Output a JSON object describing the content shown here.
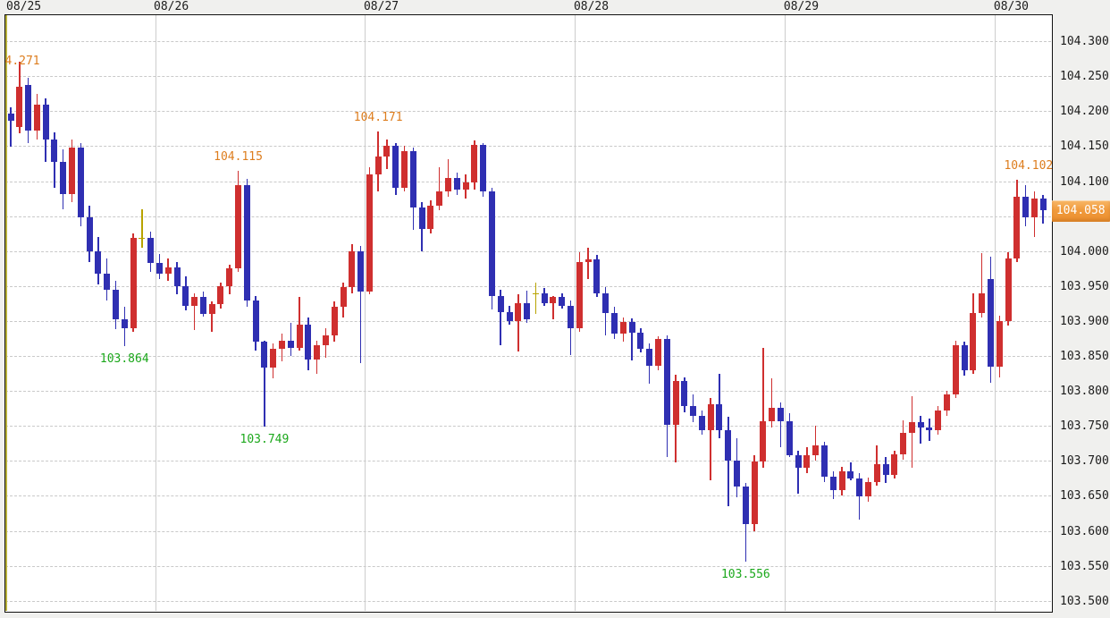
{
  "window": {
    "description": "forex candlestick chart panel, hourly candles"
  },
  "colors": {
    "up_candle": "#cf2f2f",
    "down_candle": "#2f2fb2",
    "doji_candle": "#b8a300",
    "grid": "#c9c9c9",
    "plot_border": "#111111",
    "plot_bg": "#ffffff",
    "frame_bg": "#f0f0ee",
    "axis_text": "#1b1b1b",
    "high_label": "#dd7d1e",
    "low_label": "#1ca81c",
    "price_badge_bg": "#f09a3c",
    "price_badge_bg_light": "#f8b869",
    "price_badge_text": "#ffffff",
    "session_line": "#b9b23a"
  },
  "current_price": {
    "label": "104.058",
    "value": 104.058
  },
  "x_axis": {
    "day_labels": [
      {
        "label": "08/25",
        "start_index": 0
      },
      {
        "label": "08/26",
        "start_index": 17
      },
      {
        "label": "08/27",
        "start_index": 41
      },
      {
        "label": "08/28",
        "start_index": 65
      },
      {
        "label": "08/29",
        "start_index": 89
      },
      {
        "label": "08/30",
        "start_index": 113
      }
    ]
  },
  "y_axis": {
    "tick_labels": [
      "104.300",
      "104.250",
      "104.200",
      "104.150",
      "104.100",
      "104.000",
      "103.950",
      "103.900",
      "103.850",
      "103.800",
      "103.750",
      "103.700",
      "103.650",
      "103.600",
      "103.550",
      "103.500"
    ],
    "grid_max": 104.3,
    "grid_min": 103.5,
    "grid_step": 0.05
  },
  "annotations": [
    {
      "text": "4.271",
      "value": 104.271,
      "candle_index": 1,
      "kind": "high-clipped",
      "color": "orange"
    },
    {
      "text": "104.115",
      "value": 104.115,
      "candle_index": 26,
      "kind": "high",
      "color": "orange",
      "dx": 0
    },
    {
      "text": "104.171",
      "value": 104.171,
      "candle_index": 42,
      "kind": "high",
      "color": "orange",
      "dx": 0
    },
    {
      "text": "104.102",
      "value": 104.102,
      "candle_index": 115,
      "kind": "high",
      "color": "orange",
      "dx": 13
    },
    {
      "text": "103.864",
      "value": 103.864,
      "candle_index": 13,
      "kind": "low",
      "color": "green"
    },
    {
      "text": "103.749",
      "value": 103.749,
      "candle_index": 29,
      "kind": "low",
      "color": "green"
    },
    {
      "text": "103.556",
      "value": 103.556,
      "candle_index": 84,
      "kind": "low",
      "color": "green"
    }
  ],
  "chart_data": {
    "type": "candlestick",
    "timeframe_note": "hourly candles, red = up, blue = down, yellow = doji",
    "ylim": [
      103.486,
      104.337
    ],
    "grid": "dashed horizontal every 0.050, solid vertical at each day start",
    "legend_position": "none",
    "days": [
      "08/25",
      "08/26",
      "08/27",
      "08/28",
      "08/29",
      "08/30"
    ],
    "day_start_indices": [
      0,
      17,
      41,
      65,
      89,
      113
    ],
    "candles_ohlc": [
      [
        104.197,
        104.205,
        104.149,
        104.187
      ],
      [
        104.178,
        104.271,
        104.168,
        104.235
      ],
      [
        104.238,
        104.248,
        104.154,
        104.172
      ],
      [
        104.172,
        104.225,
        104.16,
        104.21
      ],
      [
        104.21,
        104.218,
        104.128,
        104.16
      ],
      [
        104.16,
        104.17,
        104.09,
        104.128
      ],
      [
        104.128,
        104.145,
        104.06,
        104.082
      ],
      [
        104.082,
        104.16,
        104.07,
        104.148
      ],
      [
        104.148,
        104.155,
        104.035,
        104.048
      ],
      [
        104.048,
        104.065,
        103.985,
        104.0
      ],
      [
        104.0,
        104.02,
        103.952,
        103.968
      ],
      [
        103.968,
        103.99,
        103.93,
        103.945
      ],
      [
        103.945,
        103.958,
        103.888,
        103.902
      ],
      [
        103.902,
        103.92,
        103.864,
        103.89
      ],
      [
        103.89,
        104.025,
        103.885,
        104.019
      ],
      [
        104.019,
        104.06,
        104.005,
        104.019
      ],
      [
        104.019,
        104.028,
        103.97,
        103.983
      ],
      [
        103.983,
        103.996,
        103.96,
        103.968
      ],
      [
        103.968,
        103.99,
        103.958,
        103.977
      ],
      [
        103.977,
        103.985,
        103.938,
        103.95
      ],
      [
        103.95,
        103.964,
        103.915,
        103.922
      ],
      [
        103.922,
        103.94,
        103.887,
        103.935
      ],
      [
        103.935,
        103.942,
        103.906,
        103.91
      ],
      [
        103.91,
        103.928,
        103.885,
        103.924
      ],
      [
        103.924,
        103.955,
        103.918,
        103.95
      ],
      [
        103.95,
        103.98,
        103.938,
        103.976
      ],
      [
        103.976,
        104.115,
        103.97,
        104.095
      ],
      [
        104.095,
        104.103,
        103.92,
        103.93
      ],
      [
        103.93,
        103.936,
        103.858,
        103.87
      ],
      [
        103.87,
        103.872,
        103.749,
        103.833
      ],
      [
        103.833,
        103.868,
        103.818,
        103.86
      ],
      [
        103.86,
        103.882,
        103.842,
        103.872
      ],
      [
        103.872,
        103.898,
        103.85,
        103.862
      ],
      [
        103.862,
        103.935,
        103.858,
        103.895
      ],
      [
        103.895,
        103.905,
        103.83,
        103.845
      ],
      [
        103.845,
        103.872,
        103.825,
        103.865
      ],
      [
        103.865,
        103.89,
        103.848,
        103.88
      ],
      [
        103.88,
        103.928,
        103.87,
        103.92
      ],
      [
        103.92,
        103.955,
        103.905,
        103.948
      ],
      [
        103.948,
        104.01,
        103.94,
        104.0
      ],
      [
        104.0,
        104.008,
        103.84,
        103.942
      ],
      [
        103.942,
        104.12,
        103.938,
        104.11
      ],
      [
        104.11,
        104.171,
        104.085,
        104.135
      ],
      [
        104.135,
        104.16,
        104.118,
        104.15
      ],
      [
        104.15,
        104.155,
        104.08,
        104.09
      ],
      [
        104.09,
        104.15,
        104.085,
        104.143
      ],
      [
        104.143,
        104.148,
        104.03,
        104.062
      ],
      [
        104.062,
        104.07,
        104.0,
        104.032
      ],
      [
        104.032,
        104.072,
        104.025,
        104.065
      ],
      [
        104.065,
        104.12,
        104.058,
        104.085
      ],
      [
        104.085,
        104.132,
        104.078,
        104.105
      ],
      [
        104.105,
        104.112,
        104.08,
        104.088
      ],
      [
        104.088,
        104.11,
        104.075,
        104.098
      ],
      [
        104.098,
        104.158,
        104.088,
        104.152
      ],
      [
        104.152,
        104.155,
        104.078,
        104.085
      ],
      [
        104.085,
        104.09,
        103.916,
        103.936
      ],
      [
        103.936,
        103.945,
        103.866,
        103.913
      ],
      [
        103.913,
        103.922,
        103.895,
        103.9
      ],
      [
        103.9,
        103.938,
        103.857,
        103.925
      ],
      [
        103.925,
        103.944,
        103.898,
        103.903
      ],
      [
        103.94,
        103.955,
        103.91,
        103.94
      ],
      [
        103.94,
        103.947,
        103.922,
        103.925
      ],
      [
        103.925,
        103.936,
        103.902,
        103.934
      ],
      [
        103.934,
        103.94,
        103.918,
        103.922
      ],
      [
        103.922,
        103.93,
        103.852,
        103.89
      ],
      [
        103.89,
        103.998,
        103.885,
        103.984
      ],
      [
        103.984,
        104.005,
        103.96,
        103.988
      ],
      [
        103.988,
        103.995,
        103.935,
        103.94
      ],
      [
        103.94,
        103.948,
        103.88,
        103.912
      ],
      [
        103.912,
        103.92,
        103.875,
        103.882
      ],
      [
        103.882,
        103.905,
        103.87,
        103.899
      ],
      [
        103.899,
        103.904,
        103.844,
        103.883
      ],
      [
        103.883,
        103.89,
        103.855,
        103.86
      ],
      [
        103.86,
        103.868,
        103.81,
        103.836
      ],
      [
        103.836,
        103.878,
        103.83,
        103.874
      ],
      [
        103.874,
        103.88,
        103.705,
        103.752
      ],
      [
        103.752,
        103.823,
        103.698,
        103.814
      ],
      [
        103.814,
        103.82,
        103.77,
        103.779
      ],
      [
        103.779,
        103.795,
        103.755,
        103.764
      ],
      [
        103.764,
        103.772,
        103.738,
        103.744
      ],
      [
        103.744,
        103.79,
        103.673,
        103.781
      ],
      [
        103.781,
        103.825,
        103.733,
        103.744
      ],
      [
        103.744,
        103.763,
        103.635,
        103.7
      ],
      [
        103.7,
        103.733,
        103.648,
        103.663
      ],
      [
        103.663,
        103.668,
        103.556,
        103.61
      ],
      [
        103.61,
        103.708,
        103.6,
        103.699
      ],
      [
        103.699,
        103.861,
        103.69,
        103.757
      ],
      [
        103.757,
        103.818,
        103.748,
        103.776
      ],
      [
        103.776,
        103.784,
        103.72,
        103.757
      ],
      [
        103.757,
        103.768,
        103.705,
        103.708
      ],
      [
        103.708,
        103.715,
        103.653,
        103.69
      ],
      [
        103.69,
        103.72,
        103.682,
        103.708
      ],
      [
        103.708,
        103.75,
        103.7,
        103.722
      ],
      [
        103.722,
        103.728,
        103.67,
        103.677
      ],
      [
        103.677,
        103.685,
        103.645,
        103.658
      ],
      [
        103.658,
        103.692,
        103.65,
        103.685
      ],
      [
        103.685,
        103.698,
        103.672,
        103.675
      ],
      [
        103.675,
        103.682,
        103.616,
        103.649
      ],
      [
        103.649,
        103.676,
        103.642,
        103.67
      ],
      [
        103.67,
        103.722,
        103.665,
        103.695
      ],
      [
        103.695,
        103.705,
        103.668,
        103.68
      ],
      [
        103.68,
        103.715,
        103.675,
        103.71
      ],
      [
        103.71,
        103.758,
        103.702,
        103.74
      ],
      [
        103.74,
        103.793,
        103.69,
        103.756
      ],
      [
        103.756,
        103.764,
        103.725,
        103.748
      ],
      [
        103.748,
        103.76,
        103.728,
        103.744
      ],
      [
        103.744,
        103.778,
        103.738,
        103.772
      ],
      [
        103.772,
        103.8,
        103.765,
        103.795
      ],
      [
        103.795,
        103.872,
        103.79,
        103.865
      ],
      [
        103.865,
        103.87,
        103.822,
        103.83
      ],
      [
        103.83,
        103.94,
        103.825,
        103.912
      ],
      [
        103.912,
        103.997,
        103.905,
        103.94
      ],
      [
        103.96,
        103.992,
        103.812,
        103.835
      ],
      [
        103.835,
        103.908,
        103.82,
        103.9
      ],
      [
        103.9,
        103.998,
        103.893,
        103.99
      ],
      [
        103.99,
        104.102,
        103.985,
        104.078
      ],
      [
        104.078,
        104.095,
        104.035,
        104.048
      ],
      [
        104.048,
        104.085,
        104.02,
        104.075
      ],
      [
        104.075,
        104.08,
        104.04,
        104.058
      ]
    ]
  }
}
